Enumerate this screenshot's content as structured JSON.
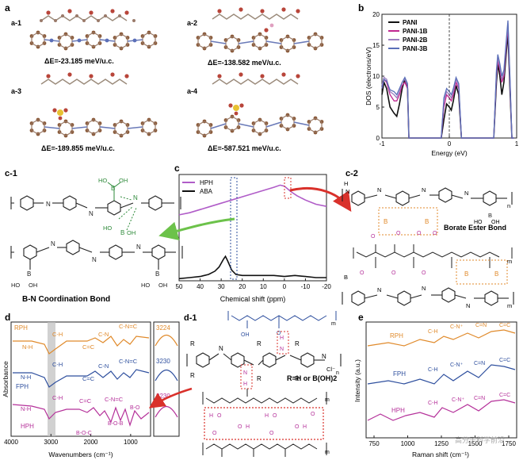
{
  "panel_a": {
    "label": "a",
    "structures": [
      {
        "id": "a-1",
        "energy": "ΔE=-23.185 meV/u.c."
      },
      {
        "id": "a-2",
        "energy": "ΔE=-138.582 meV/u.c."
      },
      {
        "id": "a-3",
        "energy": "ΔE=-189.855 meV/u.c."
      },
      {
        "id": "a-4",
        "energy": "ΔE=-587.521 meV/u.c."
      }
    ]
  },
  "chart_data": [
    {
      "panel": "b",
      "type": "line",
      "ylabel": "DOS (electrons/eV)",
      "xlabel": "Energy (eV)",
      "xlim": [
        -1,
        1
      ],
      "ylim": [
        0,
        20
      ],
      "xticks": [
        "-1",
        "0",
        "1"
      ],
      "yticks": [
        "0",
        "5",
        "10",
        "15",
        "20"
      ],
      "legend_position": "top-left",
      "series": [
        {
          "name": "PANI",
          "color": "#111111",
          "x": [
            -1.0,
            -0.97,
            -0.93,
            -0.88,
            -0.82,
            -0.78,
            -0.74,
            -0.7,
            -0.66,
            -0.62,
            -0.6,
            -0.56,
            -0.52,
            -0.48,
            -0.44,
            -0.4,
            -0.36,
            -0.32,
            -0.28,
            -0.24,
            -0.2,
            -0.16,
            -0.12,
            -0.08,
            -0.04,
            0.0,
            0.03,
            0.06,
            0.1,
            0.14,
            0.18,
            0.22,
            0.26,
            0.3,
            0.34,
            0.38,
            0.42,
            0.46,
            0.5,
            0.54,
            0.58,
            0.62,
            0.66,
            0.7,
            0.72,
            0.75,
            0.78,
            0.81,
            0.84,
            0.87,
            0.9,
            0.93,
            0.96
          ],
          "y": [
            7,
            9,
            8,
            5,
            4,
            3.5,
            5.5,
            8,
            9.5,
            8,
            0,
            0,
            0,
            0,
            0,
            0,
            0,
            0,
            0,
            0,
            0,
            0,
            0,
            3,
            5.5,
            5,
            4.5,
            6,
            8.5,
            7,
            0,
            0,
            0,
            0,
            0,
            0,
            0,
            0,
            0,
            0,
            0,
            0,
            0,
            9,
            12,
            10,
            7,
            9,
            13,
            17,
            8,
            0,
            0
          ]
        },
        {
          "name": "PANI-1B",
          "color": "#c02690",
          "x": [
            -1.0,
            -0.97,
            -0.93,
            -0.88,
            -0.82,
            -0.78,
            -0.74,
            -0.7,
            -0.66,
            -0.62,
            -0.6,
            -0.56,
            -0.52,
            -0.48,
            -0.44,
            -0.4,
            -0.36,
            -0.32,
            -0.28,
            -0.24,
            -0.2,
            -0.16,
            -0.12,
            -0.08,
            -0.04,
            0.0,
            0.03,
            0.06,
            0.1,
            0.14,
            0.18,
            0.22,
            0.26,
            0.3,
            0.34,
            0.38,
            0.42,
            0.46,
            0.5,
            0.54,
            0.58,
            0.62,
            0.66,
            0.7,
            0.72,
            0.75,
            0.78,
            0.81,
            0.84,
            0.87,
            0.9,
            0.93,
            0.96
          ],
          "y": [
            8,
            9.5,
            9,
            7,
            6,
            6,
            7,
            8.5,
            9,
            8,
            0,
            0,
            0,
            0,
            0,
            0,
            0,
            0,
            0,
            0,
            0,
            0,
            0,
            5,
            7,
            6.5,
            6,
            7,
            9,
            8,
            0,
            0,
            0,
            0,
            0,
            0,
            0,
            0,
            0,
            0,
            0,
            0,
            0,
            10,
            12.5,
            11,
            9,
            10,
            14,
            18,
            9,
            0,
            0
          ]
        },
        {
          "name": "PANI-2B",
          "color": "#9c7fc0",
          "x": [
            -1.0,
            -0.97,
            -0.93,
            -0.88,
            -0.82,
            -0.78,
            -0.74,
            -0.7,
            -0.66,
            -0.62,
            -0.6,
            -0.56,
            -0.52,
            -0.48,
            -0.44,
            -0.4,
            -0.36,
            -0.32,
            -0.28,
            -0.24,
            -0.2,
            -0.16,
            -0.12,
            -0.08,
            -0.04,
            0.0,
            0.03,
            0.06,
            0.1,
            0.14,
            0.18,
            0.22,
            0.26,
            0.3,
            0.34,
            0.38,
            0.42,
            0.46,
            0.5,
            0.54,
            0.58,
            0.62,
            0.66,
            0.7,
            0.72,
            0.75,
            0.78,
            0.81,
            0.84,
            0.87,
            0.9,
            0.93,
            0.96
          ],
          "y": [
            8.5,
            9.8,
            9.5,
            7.5,
            7,
            6.5,
            7.5,
            9,
            9.5,
            8.5,
            0,
            0,
            0,
            0,
            0,
            0,
            0,
            0,
            0,
            0,
            0,
            0,
            0,
            6,
            7.5,
            7,
            6.5,
            7.5,
            9.5,
            8.5,
            0,
            0,
            0,
            0,
            0,
            0,
            0,
            0,
            0,
            0,
            0,
            0,
            0,
            10.5,
            13,
            11.5,
            9.5,
            10.5,
            14.5,
            18.5,
            9.5,
            0,
            0
          ]
        },
        {
          "name": "PANI-3B",
          "color": "#5b6fb8",
          "x": [
            -1.0,
            -0.97,
            -0.93,
            -0.88,
            -0.82,
            -0.78,
            -0.74,
            -0.7,
            -0.66,
            -0.62,
            -0.6,
            -0.56,
            -0.52,
            -0.48,
            -0.44,
            -0.4,
            -0.36,
            -0.32,
            -0.28,
            -0.24,
            -0.2,
            -0.16,
            -0.12,
            -0.08,
            -0.04,
            0.0,
            0.03,
            0.06,
            0.1,
            0.14,
            0.18,
            0.22,
            0.26,
            0.3,
            0.34,
            0.38,
            0.42,
            0.46,
            0.5,
            0.54,
            0.58,
            0.62,
            0.66,
            0.7,
            0.72,
            0.75,
            0.78,
            0.81,
            0.84,
            0.87,
            0.9,
            0.93,
            0.96
          ],
          "y": [
            8,
            9.5,
            9.2,
            7.8,
            7.5,
            7,
            8,
            9,
            9.8,
            8.8,
            0,
            0,
            0,
            0,
            0,
            0,
            0,
            0,
            0,
            0,
            0,
            0,
            0,
            6.5,
            8,
            7.5,
            7,
            8,
            9.8,
            8.8,
            0,
            0,
            0,
            0,
            0,
            0,
            0,
            0,
            0,
            0,
            0,
            0,
            0,
            11,
            13.5,
            12,
            10,
            11,
            15,
            19,
            10,
            0,
            0
          ]
        }
      ]
    },
    {
      "panel": "c",
      "type": "line",
      "xlabel": "Chemical shift (ppm)",
      "xlim": [
        50,
        -20
      ],
      "xticks": [
        "50",
        "40",
        "30",
        "20",
        "10",
        "0",
        "-10",
        "-20"
      ],
      "legend_position": "top-left",
      "series": [
        {
          "name": "HPH",
          "color": "#b05cc8",
          "x": [
            50,
            45,
            40,
            35,
            30,
            25,
            20,
            15,
            10,
            5,
            2,
            0,
            -3,
            -6,
            -10,
            -15,
            -20
          ],
          "y": [
            0.62,
            0.64,
            0.67,
            0.7,
            0.73,
            0.76,
            0.79,
            0.82,
            0.85,
            0.88,
            0.9,
            0.89,
            0.84,
            0.8,
            0.76,
            0.72,
            0.7
          ]
        },
        {
          "name": "ABA",
          "color": "#111111",
          "x": [
            50,
            45,
            40,
            36,
            33,
            31,
            29,
            28,
            27,
            25,
            23,
            20,
            15,
            10,
            5,
            0,
            -5,
            -10,
            -15,
            -20
          ],
          "y": [
            0.02,
            0.03,
            0.04,
            0.06,
            0.09,
            0.13,
            0.2,
            0.23,
            0.19,
            0.1,
            0.06,
            0.05,
            0.05,
            0.05,
            0.05,
            0.04,
            0.05,
            0.04,
            0.03,
            0.03
          ]
        }
      ]
    },
    {
      "panel": "d",
      "type": "line",
      "xlabel": "Wavenumbers (cm⁻¹)",
      "ylabel": "Absorbance",
      "xlim": [
        4000,
        500
      ],
      "xticks": [
        "4000",
        "3000",
        "2000",
        "1000"
      ],
      "series": [
        {
          "name": "RPH",
          "color": "#e08a2b"
        },
        {
          "name": "FPH",
          "color": "#2e4f9e"
        },
        {
          "name": "HPH",
          "color": "#b5319a"
        }
      ],
      "annotations": [
        "N-H",
        "C-H",
        "C=C",
        "C-N",
        "C-N=C",
        "B-O-C",
        "B-O-B",
        "B-O"
      ],
      "inset_peaks": [
        "3224",
        "3230",
        "3230"
      ]
    },
    {
      "panel": "e",
      "type": "line",
      "xlabel": "Raman shift (cm⁻¹)",
      "ylabel": "Intensity (a.u.)",
      "xticks": [
        "750",
        "1000",
        "1250",
        "1500",
        "1750"
      ],
      "series": [
        {
          "name": "RPH",
          "color": "#e08a2b"
        },
        {
          "name": "FPH",
          "color": "#2e4f9e"
        },
        {
          "name": "HPH",
          "color": "#b5319a"
        }
      ],
      "annotations": [
        "C-H",
        "C-N⁺",
        "C=N",
        "C=C"
      ]
    }
  ],
  "panel_b": {
    "label": "b"
  },
  "panel_c": {
    "label": "c"
  },
  "panel_c1": {
    "label": "c-1",
    "caption": "B-N Coordination Bond"
  },
  "panel_c2": {
    "label": "c-2",
    "caption": "Borate Ester Bond"
  },
  "panel_d": {
    "label": "d",
    "nh": "N-H",
    "ch": "C-H",
    "cc": "C=C",
    "cn": "C-N",
    "cnc": "C-N=C",
    "boc": "B-O-C",
    "bob": "B-O-B",
    "bo": "B-O"
  },
  "panel_d1": {
    "label": "d-1",
    "r_definition": "R=H or B(OH)2",
    "cl": "Cl⁻",
    "r": "R"
  },
  "panel_e": {
    "label": "e",
    "ch": "C-H",
    "cn_plus": "C-N⁺",
    "cn": "C=N",
    "cc": "C=C"
  },
  "watermark": "高分子科学前沿"
}
